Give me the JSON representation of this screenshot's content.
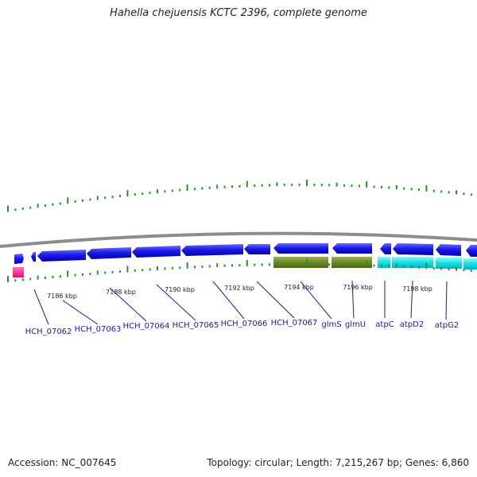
{
  "title": "Hahella chejuensis KCTC 2396, complete genome",
  "accession": "Accession: NC_007645",
  "summary": "Topology: circular; Length: 7,215,267 bp; Genes: 6,860",
  "colors": {
    "backbone": "#8c8c8c",
    "tick": "#2d8f2d",
    "gene": "#1010e6",
    "gene_label": "#1a1aa0",
    "rRNA_like": "#6e8a24",
    "cyan_track": "#12e0e6",
    "misc": "#ff1493"
  },
  "scale_labels": [
    "7186 kbp",
    "7188 kbp",
    "7190 kbp",
    "7192 kbp",
    "7194 kbp",
    "7196 kbp",
    "7198 kbp"
  ],
  "genes": [
    "HCH_07062",
    "HCH_07063",
    "HCH_07064",
    "HCH_07065",
    "HCH_07066",
    "HCH_07067",
    "glmS",
    "glmU",
    "atpC",
    "atpD2",
    "atpG2"
  ]
}
